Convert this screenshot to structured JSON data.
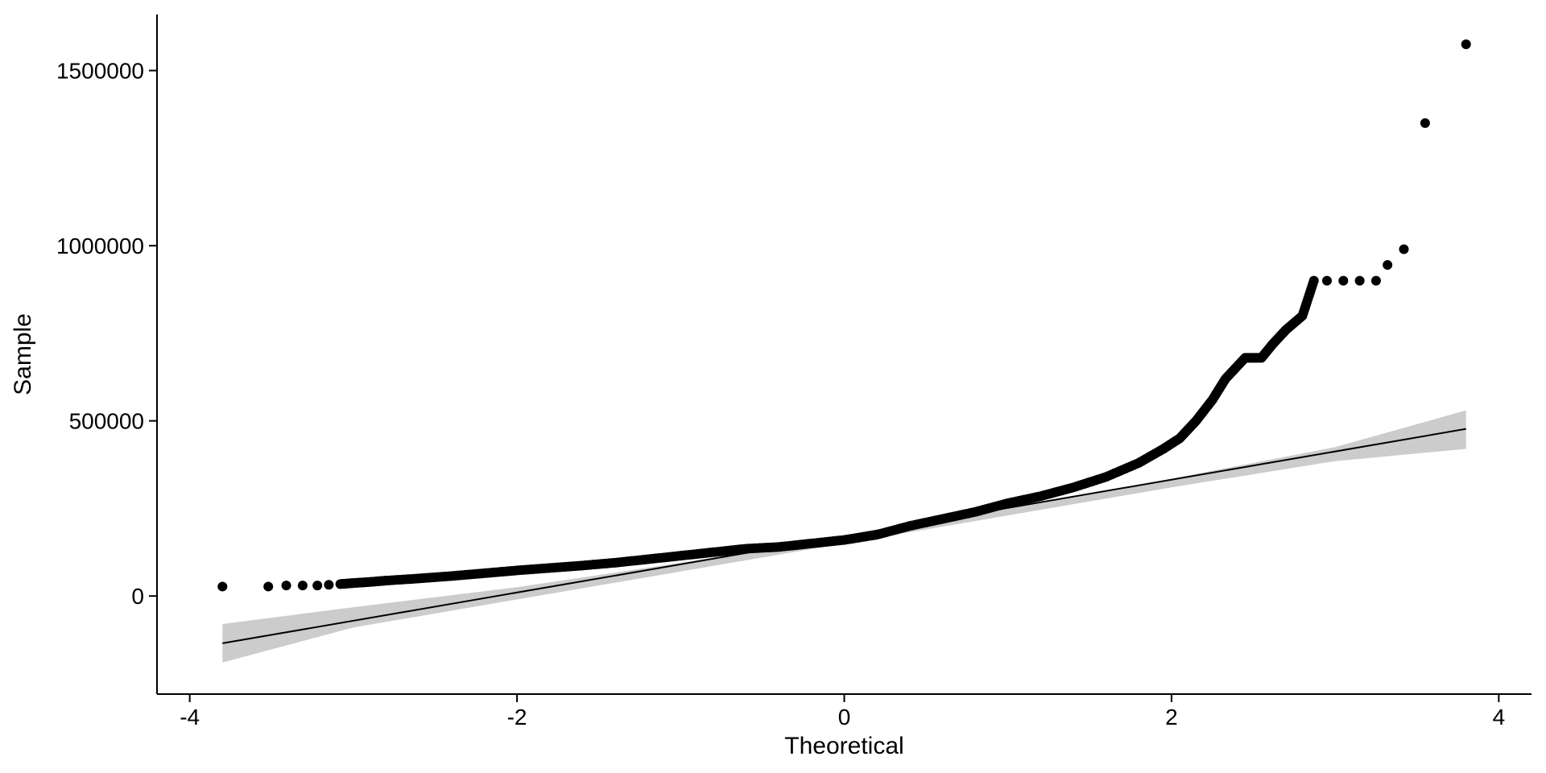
{
  "chart_data": {
    "type": "scatter",
    "title": "",
    "xlabel": "Theoretical",
    "ylabel": "Sample",
    "xlim": [
      -4.2,
      4.2
    ],
    "ylim": [
      -280000,
      1660000
    ],
    "x_ticks": [
      -4,
      -2,
      0,
      2,
      4
    ],
    "x_tick_labels": [
      "-4",
      "-2",
      "0",
      "2",
      "4"
    ],
    "y_ticks": [
      0,
      500000,
      1000000,
      1500000
    ],
    "y_tick_labels": [
      "0",
      "500000",
      "1000000",
      "1500000"
    ],
    "grid": false,
    "legend": "none",
    "reference_line": {
      "x": [
        -3.8,
        3.8
      ],
      "y": [
        -135000,
        477000
      ]
    },
    "confidence_band": {
      "x": [
        -3.8,
        -3.0,
        -2.0,
        -1.0,
        0.0,
        1.0,
        2.0,
        3.0,
        3.8
      ],
      "lower": [
        -190000,
        -90000,
        -10000,
        70000,
        150000,
        230000,
        310000,
        385000,
        420000
      ],
      "upper": [
        -80000,
        -32000,
        25000,
        95000,
        170000,
        250000,
        335000,
        425000,
        530000
      ]
    },
    "series": [
      {
        "x": [
          -3.8,
          -3.52,
          -3.41,
          -3.31,
          -3.22,
          -3.15,
          -3.08,
          -3.0,
          -2.9,
          -2.8,
          -2.6,
          -2.4,
          -2.2,
          -2.0,
          -1.8,
          -1.6,
          -1.4,
          -1.2,
          -1.0,
          -0.8,
          -0.6,
          -0.4,
          -0.2,
          0.0,
          0.2,
          0.4,
          0.6,
          0.8,
          1.0,
          1.2,
          1.4,
          1.6,
          1.8,
          1.95,
          2.05,
          2.15,
          2.25,
          2.33,
          2.45,
          2.55,
          2.62,
          2.7,
          2.8,
          2.87,
          2.95,
          3.05,
          3.15,
          3.25,
          3.32,
          3.42,
          3.55,
          3.8
        ],
        "y": [
          27000,
          27000,
          30000,
          30000,
          30000,
          32000,
          34000,
          37000,
          40000,
          44000,
          50000,
          57000,
          65000,
          73000,
          80000,
          87000,
          95000,
          105000,
          115000,
          125000,
          135000,
          140000,
          150000,
          160000,
          175000,
          200000,
          220000,
          240000,
          265000,
          285000,
          310000,
          340000,
          380000,
          420000,
          450000,
          500000,
          560000,
          620000,
          680000,
          680000,
          720000,
          760000,
          800000,
          900000,
          900000,
          900000,
          900000,
          900000,
          945000,
          990000,
          1350000,
          1575000
        ]
      }
    ]
  }
}
